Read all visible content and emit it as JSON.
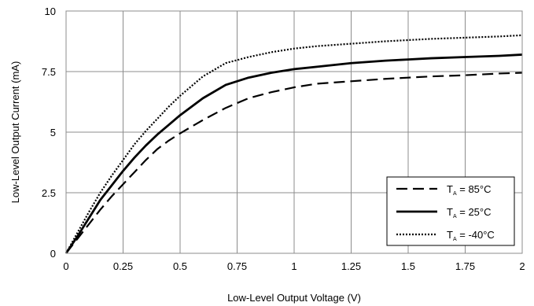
{
  "chart_data": {
    "type": "line",
    "title": "",
    "xlabel": "Low-Level Output Voltage (V)",
    "ylabel": "Low-Level Output Current (mA)",
    "xlim": [
      0,
      2
    ],
    "ylim": [
      0,
      10
    ],
    "xticks": [
      0,
      0.25,
      0.5,
      0.75,
      1,
      1.25,
      1.5,
      1.75,
      2
    ],
    "xtick_labels": [
      "0",
      "0.25",
      "0.5",
      "0.75",
      "1",
      "1.25",
      "1.5",
      "1.75",
      "2"
    ],
    "yticks": [
      0,
      2.5,
      5,
      7.5,
      10
    ],
    "ytick_labels": [
      "0",
      "2.5",
      "5",
      "7.5",
      "10"
    ],
    "grid": true,
    "legend_position": "bottom-right",
    "series": [
      {
        "name": "TA = 85°C",
        "label_main": "T",
        "label_sub": "A",
        "label_rest": " = 85°C",
        "style": "dashed",
        "color": "#000000",
        "x": [
          0,
          0.05,
          0.1,
          0.15,
          0.2,
          0.25,
          0.3,
          0.35,
          0.4,
          0.45,
          0.5,
          0.6,
          0.7,
          0.8,
          0.9,
          1.0,
          1.1,
          1.25,
          1.4,
          1.5,
          1.6,
          1.75,
          1.9,
          2.0
        ],
        "y": [
          0,
          0.6,
          1.2,
          1.8,
          2.35,
          2.85,
          3.35,
          3.85,
          4.3,
          4.65,
          4.95,
          5.5,
          6.0,
          6.4,
          6.65,
          6.85,
          7.0,
          7.1,
          7.2,
          7.25,
          7.3,
          7.35,
          7.42,
          7.45
        ]
      },
      {
        "name": "TA = 25°C",
        "label_main": "T",
        "label_sub": "A",
        "label_rest": " = 25°C",
        "style": "solid",
        "color": "#000000",
        "x": [
          0,
          0.05,
          0.1,
          0.15,
          0.2,
          0.25,
          0.3,
          0.35,
          0.4,
          0.45,
          0.5,
          0.6,
          0.7,
          0.8,
          0.9,
          1.0,
          1.1,
          1.25,
          1.4,
          1.5,
          1.6,
          1.75,
          1.9,
          2.0
        ],
        "y": [
          0,
          0.7,
          1.45,
          2.2,
          2.8,
          3.4,
          3.95,
          4.45,
          4.9,
          5.3,
          5.7,
          6.4,
          6.95,
          7.25,
          7.45,
          7.6,
          7.7,
          7.85,
          7.95,
          8.0,
          8.05,
          8.1,
          8.15,
          8.2
        ]
      },
      {
        "name": "TA = -40°C",
        "label_main": "T",
        "label_sub": "A",
        "label_rest": " = -40°C",
        "style": "dotted",
        "color": "#000000",
        "x": [
          0,
          0.05,
          0.1,
          0.15,
          0.2,
          0.25,
          0.3,
          0.35,
          0.4,
          0.45,
          0.5,
          0.6,
          0.7,
          0.8,
          0.9,
          1.0,
          1.1,
          1.25,
          1.4,
          1.5,
          1.6,
          1.75,
          1.9,
          2.0
        ],
        "y": [
          0,
          0.85,
          1.7,
          2.5,
          3.2,
          3.85,
          4.5,
          5.05,
          5.55,
          6.05,
          6.5,
          7.3,
          7.85,
          8.1,
          8.3,
          8.45,
          8.55,
          8.65,
          8.75,
          8.8,
          8.85,
          8.9,
          8.95,
          9.0
        ]
      }
    ]
  }
}
